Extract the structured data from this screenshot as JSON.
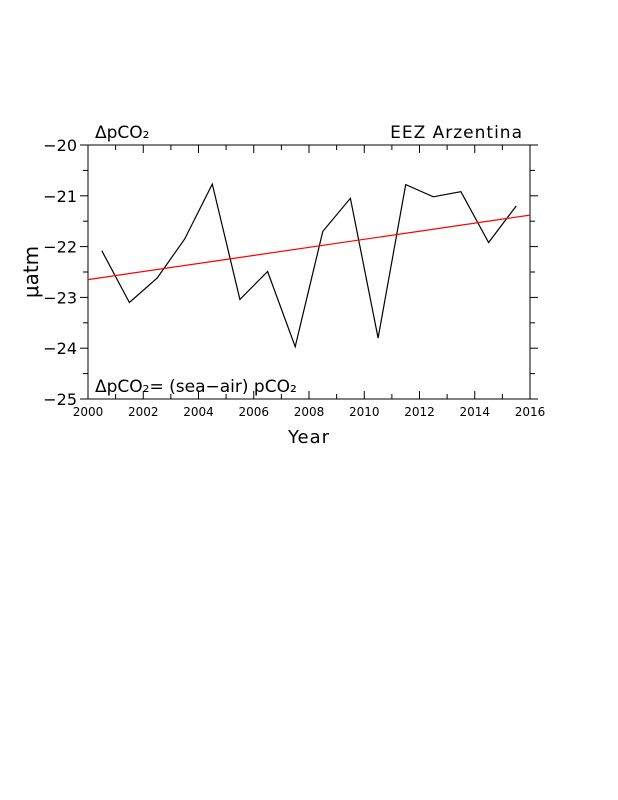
{
  "chart_data": {
    "type": "line",
    "title_left": "ΔpCO₂",
    "title_right": "EEZ Arzentina",
    "annotation": "ΔpCO₂= (sea−air) pCO₂",
    "xlabel": "Year",
    "ylabel": "μatm",
    "xlim": [
      2000,
      2016
    ],
    "ylim": [
      -25,
      -20
    ],
    "x_ticks": [
      2000,
      2002,
      2004,
      2006,
      2008,
      2010,
      2012,
      2014,
      2016
    ],
    "y_ticks": [
      -25,
      -24,
      -23,
      -22,
      -21,
      -20
    ],
    "grid": false,
    "series": [
      {
        "color": "#000000",
        "x": [
          2000.5,
          2001.5,
          2002.5,
          2003.5,
          2004.5,
          2005.5,
          2006.5,
          2007.5,
          2008.5,
          2009.5,
          2010.5,
          2011.5,
          2012.5,
          2013.5,
          2014.5,
          2015.5
        ],
        "y": [
          -22.08,
          -23.1,
          -22.62,
          -21.85,
          -20.77,
          -23.04,
          -22.49,
          -23.97,
          -21.7,
          -21.05,
          -23.8,
          -20.78,
          -21.02,
          -20.92,
          -21.92,
          -21.2
        ]
      },
      {
        "color": "#ff0000",
        "x": [
          2000,
          2016
        ],
        "y": [
          -22.65,
          -21.38
        ]
      }
    ]
  }
}
